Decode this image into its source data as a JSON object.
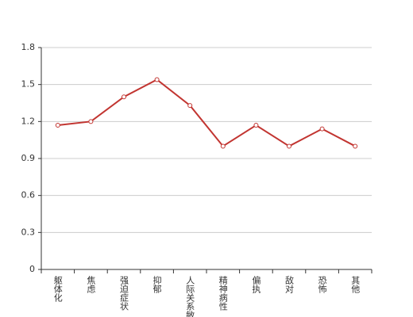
{
  "chart_data": {
    "type": "line",
    "categories": [
      "躯体化",
      "焦虑",
      "强迫症状",
      "抑郁",
      "人际关系敏感",
      "精神病性",
      "偏执",
      "敌对",
      "恐怖",
      "其他"
    ],
    "values": [
      1.17,
      1.2,
      1.4,
      1.54,
      1.33,
      1.0,
      1.17,
      1.0,
      1.14,
      1.0
    ],
    "color": "#c23531",
    "ylim": [
      0,
      1.8
    ],
    "yticks": [
      0,
      0.3,
      0.6,
      0.9,
      1.2,
      1.5,
      1.8
    ],
    "grid": true
  }
}
